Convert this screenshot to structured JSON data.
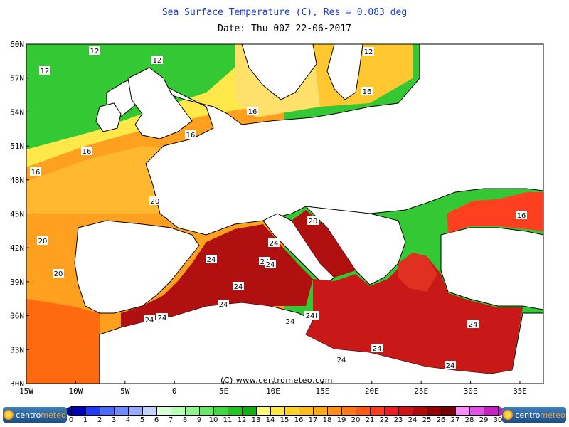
{
  "header": {
    "title": "Sea Surface Temperature (C), Res = 0.083 deg",
    "date_line": "Date:  Thu 00Z 22-06-2017"
  },
  "map": {
    "lat_ticks": [
      "60N",
      "57N",
      "54N",
      "51N",
      "48N",
      "45N",
      "42N",
      "39N",
      "36N",
      "33N",
      "30N"
    ],
    "lon_ticks": [
      "15W",
      "10W",
      "5W",
      "0",
      "5E",
      "10E",
      "15E",
      "20E",
      "25E",
      "30E",
      "35E"
    ],
    "contour_labels": [
      "12",
      "12",
      "12",
      "12",
      "16",
      "16",
      "16",
      "16",
      "16",
      "20",
      "20",
      "20",
      "20",
      "24",
      "24",
      "24",
      "24",
      "24",
      "24",
      "24",
      "24",
      "24",
      "24",
      "24",
      "24",
      "24",
      "24",
      "24",
      "16"
    ],
    "region_fill_colors": {
      "atlantic_north": "#34c934",
      "atlantic_mid": "#ffe84a",
      "atlantic_south": "#ffa020",
      "atlantic_far_south": "#ff6a10",
      "mediterranean_west": "#b01010",
      "mediterranean_east": "#c81818",
      "black_sea": "#ff4020",
      "baltic": "#ffd040",
      "land": "#ffffff"
    }
  },
  "copyright": "(C) www.centrometeo.com",
  "color_scale": {
    "labels": [
      "0",
      "1",
      "2",
      "3",
      "4",
      "5",
      "6",
      "7",
      "8",
      "9",
      "10",
      "11",
      "12",
      "13",
      "14",
      "15",
      "16",
      "17",
      "18",
      "19",
      "20",
      "21",
      "22",
      "23",
      "24",
      "25",
      "26",
      "27",
      "28",
      "29",
      "30"
    ],
    "colors": [
      "#0a0a7a",
      "#0000b4",
      "#1e3cff",
      "#4a6bff",
      "#6e8cff",
      "#96aaff",
      "#c6d2ff",
      "#d8ffd8",
      "#b4ffb4",
      "#8cf58c",
      "#64eb64",
      "#3cdc3c",
      "#1ec81e",
      "#0ab40a",
      "#ffff78",
      "#ffe846",
      "#ffd21e",
      "#ffbe14",
      "#ffaa14",
      "#ff8c14",
      "#ff7814",
      "#ff5a14",
      "#ff3c1e",
      "#ee1e1e",
      "#d21414",
      "#b40a0a",
      "#960000",
      "#780000",
      "#ff8cff",
      "#e650e6",
      "#c81ec8"
    ]
  },
  "logos": {
    "left": {
      "a": "centro",
      "b": "meteo"
    },
    "right": {
      "a": "centro",
      "b": "meteo"
    }
  }
}
